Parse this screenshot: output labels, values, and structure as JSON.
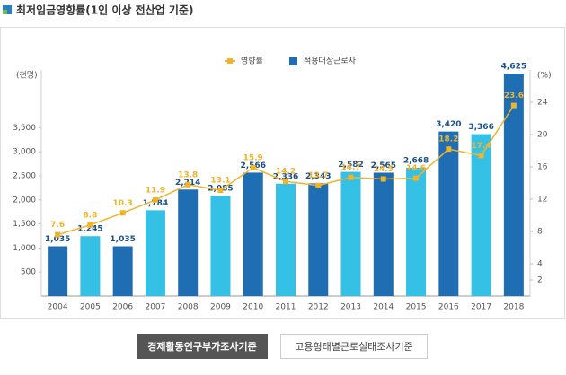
{
  "chart_data": {
    "type": "bar-line",
    "title": "최저임금영향률(1인 이상 전산업 기준)",
    "ylabel": "(천명)",
    "y2label": "(%)",
    "categories": [
      "2004",
      "2005",
      "2006",
      "2007",
      "2008",
      "2009",
      "2010",
      "2011",
      "2012",
      "2013",
      "2014",
      "2015",
      "2016",
      "2017",
      "2018"
    ],
    "series": [
      {
        "name": "적용대상근로자",
        "type": "bar",
        "color": "#1f6db3",
        "colors": [
          "#1f6db3",
          "#35c0e6",
          "#1f6db3",
          "#35c0e6",
          "#1f6db3",
          "#35c0e6",
          "#1f6db3",
          "#35c0e6",
          "#1f6db3",
          "#35c0e6",
          "#1f6db3",
          "#35c0e6",
          "#1f6db3",
          "#35c0e6",
          "#1f6db3"
        ],
        "values": [
          1035,
          1245,
          1035,
          1784,
          2214,
          2085,
          2566,
          2336,
          2343,
          2582,
          2565,
          2668,
          3420,
          3366,
          4625
        ],
        "value_labels": [
          "1,035",
          "1,245",
          "1,035",
          "1,784",
          "2,214",
          "2,085",
          "2,566",
          "2,336",
          "2,343",
          "2,582",
          "2,565",
          "2,668",
          "3,420",
          "3,366",
          "4,625"
        ]
      },
      {
        "name": "영향률",
        "type": "line",
        "axis": "y2",
        "color": "#f0b429",
        "values": [
          7.6,
          8.8,
          10.3,
          11.9,
          13.8,
          13.1,
          15.9,
          14.2,
          13.7,
          14.7,
          14.5,
          14.6,
          18.2,
          17.4,
          23.6
        ]
      }
    ],
    "ylim": [
      0,
      4700
    ],
    "yticks": [
      500,
      {
        "value": 1000,
        "label": "1,000"
      },
      {
        "value": 1500,
        "label": "1,500"
      },
      {
        "value": 2000,
        "label": "2,000"
      },
      {
        "value": 2500,
        "label": "2,500"
      },
      {
        "value": 3000,
        "label": "3,000"
      },
      {
        "value": 3500,
        "label": "3,500"
      }
    ],
    "y2lim": [
      0,
      28
    ],
    "y2ticks": [
      2,
      4,
      8,
      12,
      16,
      20,
      24
    ],
    "grid": false,
    "legend": "top"
  },
  "buttons": [
    "경제활동인구부가조사기준",
    "고용형태별근로실태조사기준"
  ]
}
